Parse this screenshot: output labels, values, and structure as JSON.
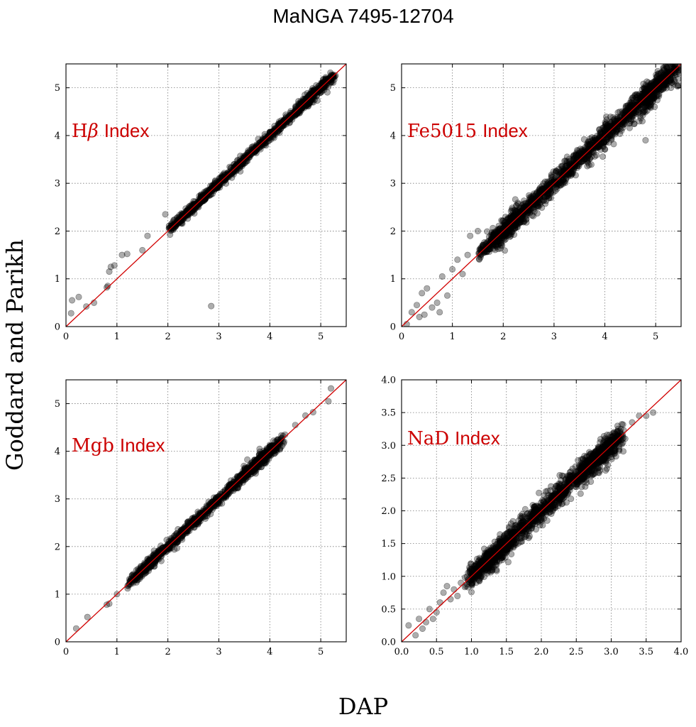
{
  "figure": {
    "suptitle": "MaNGA 7495-12704",
    "ylabel": "Goddard and Parikh",
    "xlabel": "DAP"
  },
  "colors": {
    "reference_line": "#d10000",
    "label": "#cc0000",
    "points": "#000000"
  },
  "chart_data": [
    {
      "type": "scatter",
      "label_main": "Hβ",
      "label_suffix": "Index",
      "xlim": [
        0,
        5.5
      ],
      "ylim": [
        0,
        5.5
      ],
      "xticks": [
        "0",
        "1",
        "2",
        "3",
        "4",
        "5"
      ],
      "yticks": [
        "0",
        "1",
        "2",
        "3",
        "4",
        "5"
      ],
      "grid": true,
      "reference_line": "y = x",
      "scatter": 0.05,
      "main_range": [
        2.0,
        5.3
      ],
      "outliers": [
        [
          0.12,
          0.55
        ],
        [
          0.25,
          0.62
        ],
        [
          0.1,
          0.28
        ],
        [
          0.4,
          0.42
        ],
        [
          0.55,
          0.5
        ],
        [
          0.8,
          0.82
        ],
        [
          0.82,
          0.85
        ],
        [
          0.88,
          1.25
        ],
        [
          0.95,
          1.28
        ],
        [
          1.1,
          1.5
        ],
        [
          1.2,
          1.52
        ],
        [
          1.5,
          1.6
        ],
        [
          1.6,
          1.9
        ],
        [
          1.95,
          2.35
        ],
        [
          2.85,
          0.43
        ],
        [
          0.85,
          1.15
        ]
      ]
    },
    {
      "type": "scatter",
      "label_main": "Fe5015",
      "label_suffix": "Index",
      "xlim": [
        0,
        5.5
      ],
      "ylim": [
        0,
        5.5
      ],
      "xticks": [
        "0",
        "1",
        "2",
        "3",
        "4",
        "5"
      ],
      "yticks": [
        "0",
        "1",
        "2",
        "3",
        "4",
        "5"
      ],
      "grid": true,
      "reference_line": "y = x",
      "scatter": 0.12,
      "main_range": [
        1.5,
        5.5
      ],
      "outliers": [
        [
          0.1,
          0.05
        ],
        [
          0.2,
          0.3
        ],
        [
          0.3,
          0.45
        ],
        [
          0.4,
          0.7
        ],
        [
          0.5,
          0.8
        ],
        [
          0.45,
          0.25
        ],
        [
          0.6,
          0.4
        ],
        [
          0.7,
          0.5
        ],
        [
          0.75,
          0.3
        ],
        [
          0.9,
          0.65
        ],
        [
          1.0,
          1.2
        ],
        [
          1.1,
          1.4
        ],
        [
          1.2,
          1.1
        ],
        [
          1.3,
          1.5
        ],
        [
          1.35,
          1.9
        ],
        [
          1.5,
          2.0
        ],
        [
          0.8,
          1.05
        ],
        [
          0.35,
          0.2
        ],
        [
          4.8,
          3.9
        ],
        [
          5.3,
          5.0
        ],
        [
          5.45,
          5.05
        ]
      ]
    },
    {
      "type": "scatter",
      "label_main": "Mgb",
      "label_suffix": "Index",
      "xlim": [
        0,
        5.5
      ],
      "ylim": [
        0,
        5.5
      ],
      "xticks": [
        "0",
        "1",
        "2",
        "3",
        "4",
        "5"
      ],
      "yticks": [
        "0",
        "1",
        "2",
        "3",
        "4",
        "5"
      ],
      "grid": true,
      "reference_line": "y = x",
      "scatter": 0.06,
      "main_range": [
        1.2,
        4.3
      ],
      "outliers": [
        [
          0.2,
          0.28
        ],
        [
          0.42,
          0.52
        ],
        [
          0.8,
          0.78
        ],
        [
          0.85,
          0.8
        ],
        [
          1.0,
          1.0
        ],
        [
          4.3,
          4.35
        ],
        [
          4.5,
          4.55
        ],
        [
          4.7,
          4.75
        ],
        [
          4.85,
          4.82
        ],
        [
          5.15,
          5.05
        ],
        [
          5.2,
          5.32
        ],
        [
          3.95,
          3.95
        ],
        [
          3.8,
          4.05
        ]
      ]
    },
    {
      "type": "scatter",
      "label_main": "NaD",
      "label_suffix": "Index",
      "xlim": [
        0,
        4.0
      ],
      "ylim": [
        0,
        4.0
      ],
      "xticks": [
        "0.0",
        "0.5",
        "1.0",
        "1.5",
        "2.0",
        "2.5",
        "3.0",
        "3.5",
        "4.0"
      ],
      "yticks": [
        "0.0",
        "0.5",
        "1.0",
        "1.5",
        "2.0",
        "2.5",
        "3.0",
        "3.5",
        "4.0"
      ],
      "grid": true,
      "reference_line": "y = x",
      "scatter": 0.09,
      "main_range": [
        0.9,
        3.2
      ],
      "outliers": [
        [
          0.1,
          0.25
        ],
        [
          0.2,
          0.1
        ],
        [
          0.25,
          0.35
        ],
        [
          0.35,
          0.3
        ],
        [
          0.4,
          0.5
        ],
        [
          0.5,
          0.45
        ],
        [
          0.55,
          0.6
        ],
        [
          0.6,
          0.75
        ],
        [
          0.7,
          0.65
        ],
        [
          0.75,
          0.8
        ],
        [
          0.8,
          0.7
        ],
        [
          0.3,
          0.2
        ],
        [
          0.45,
          0.35
        ],
        [
          0.65,
          0.85
        ],
        [
          0.85,
          0.9
        ],
        [
          3.3,
          3.35
        ],
        [
          3.4,
          3.45
        ],
        [
          3.5,
          3.45
        ],
        [
          3.6,
          3.5
        ],
        [
          3.2,
          3.1
        ],
        [
          3.1,
          3.25
        ]
      ]
    }
  ]
}
